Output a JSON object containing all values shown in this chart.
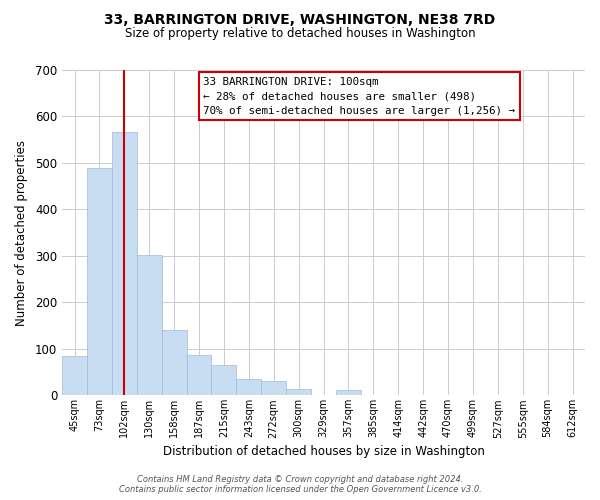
{
  "title": "33, BARRINGTON DRIVE, WASHINGTON, NE38 7RD",
  "subtitle": "Size of property relative to detached houses in Washington",
  "xlabel": "Distribution of detached houses by size in Washington",
  "ylabel": "Number of detached properties",
  "bar_labels": [
    "45sqm",
    "73sqm",
    "102sqm",
    "130sqm",
    "158sqm",
    "187sqm",
    "215sqm",
    "243sqm",
    "272sqm",
    "300sqm",
    "329sqm",
    "357sqm",
    "385sqm",
    "414sqm",
    "442sqm",
    "470sqm",
    "499sqm",
    "527sqm",
    "555sqm",
    "584sqm",
    "612sqm"
  ],
  "bar_values": [
    84,
    490,
    567,
    302,
    140,
    86,
    65,
    36,
    30,
    14,
    0,
    12,
    0,
    0,
    0,
    0,
    0,
    0,
    0,
    0,
    0
  ],
  "bar_color": "#c9ddf2",
  "bar_edge_color": "#9dbbd8",
  "vline_x": 2,
  "vline_color": "#cc0000",
  "ylim": [
    0,
    700
  ],
  "yticks": [
    0,
    100,
    200,
    300,
    400,
    500,
    600,
    700
  ],
  "annotation_title": "33 BARRINGTON DRIVE: 100sqm",
  "annotation_line1": "← 28% of detached houses are smaller (498)",
  "annotation_line2": "70% of semi-detached houses are larger (1,256) →",
  "annotation_box_color": "#ffffff",
  "annotation_box_edge_color": "#cc0000",
  "footer_line1": "Contains HM Land Registry data © Crown copyright and database right 2024.",
  "footer_line2": "Contains public sector information licensed under the Open Government Licence v3.0.",
  "background_color": "#ffffff",
  "grid_color": "#cccccc"
}
